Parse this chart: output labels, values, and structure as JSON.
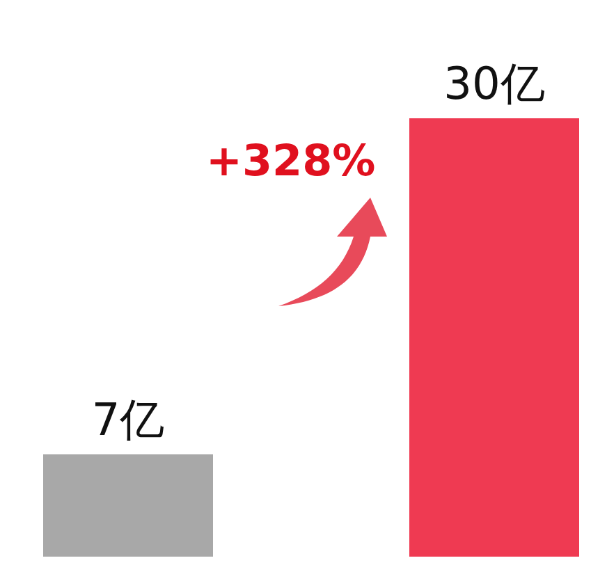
{
  "chart_data": {
    "type": "bar",
    "categories": [
      null,
      null
    ],
    "values": [
      7,
      30
    ],
    "colors": [
      "#a8a8a8",
      "#ef3a52"
    ],
    "value_labels": [
      "7亿",
      "30亿"
    ],
    "annotations": [
      "+328%"
    ],
    "tick_labels": false,
    "grid": false,
    "legend": false
  }
}
